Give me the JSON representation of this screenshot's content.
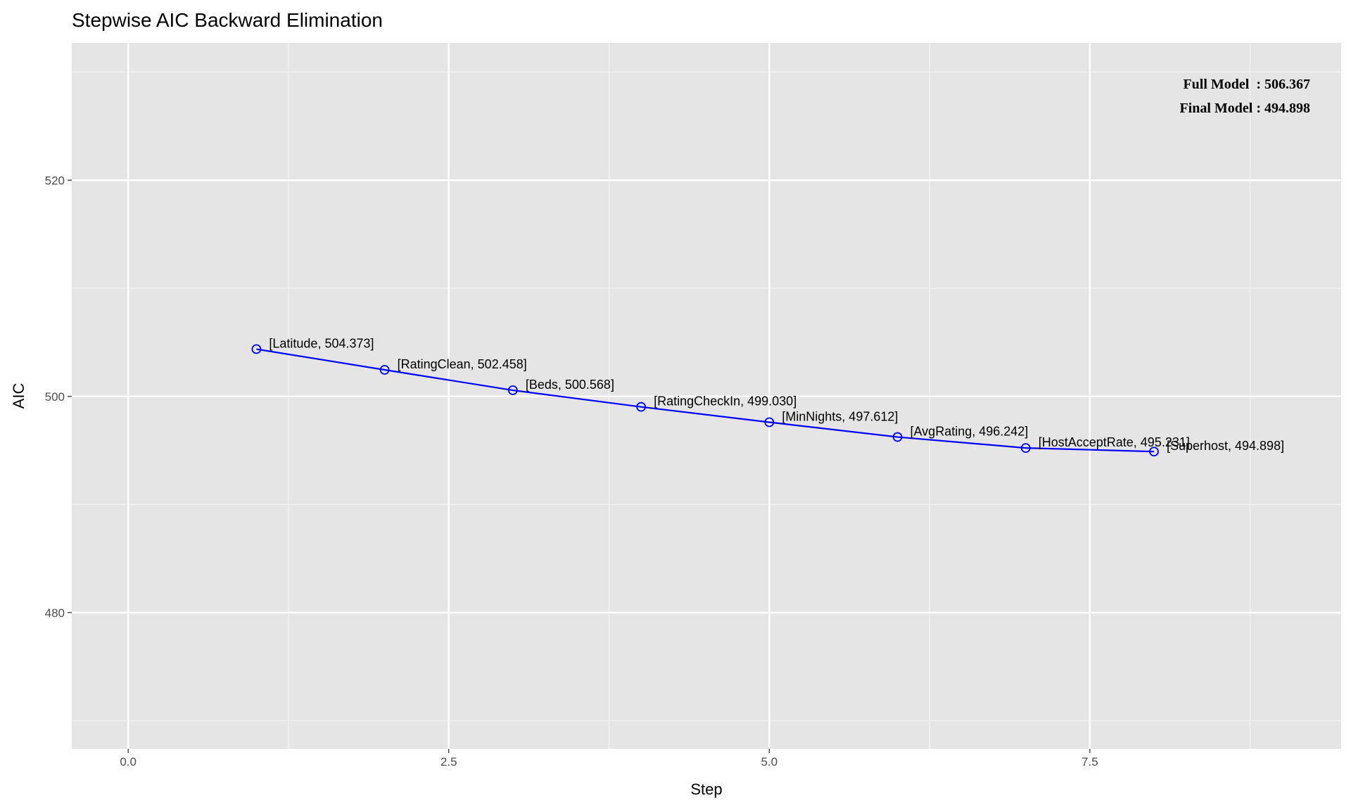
{
  "chart_data": {
    "type": "line",
    "title": "Stepwise AIC Backward Elimination",
    "xlabel": "Step",
    "ylabel": "AIC",
    "xlim": [
      -0.44,
      9.46
    ],
    "ylim": [
      467.4,
      532.7
    ],
    "x_ticks": [
      0,
      2.5,
      5,
      7.5
    ],
    "x_tick_labels": [
      "0.0",
      "2.5",
      "5.0",
      "7.5"
    ],
    "y_ticks": [
      480,
      500,
      520
    ],
    "y_tick_labels": [
      "480",
      "500",
      "520"
    ],
    "grid": true,
    "series": [
      {
        "name": "AIC",
        "color": "#0000ff",
        "x": [
          1,
          2,
          3,
          4,
          5,
          6,
          7,
          8
        ],
        "y": [
          504.373,
          502.458,
          500.568,
          499.03,
          497.612,
          496.242,
          495.231,
          494.898
        ],
        "labels": [
          "[Latitude, 504.373]",
          "[RatingClean, 502.458]",
          "[Beds, 500.568]",
          "[RatingCheckIn, 499.030]",
          "[MinNights, 497.612]",
          "[AvgRating, 496.242]",
          "[HostAcceptRate, 495.231]",
          "[Superhost, 494.898]"
        ]
      }
    ],
    "annotations": [
      "Full Model  : 506.367",
      "Final Model : 494.898"
    ],
    "annotation_placement": "top-right"
  }
}
